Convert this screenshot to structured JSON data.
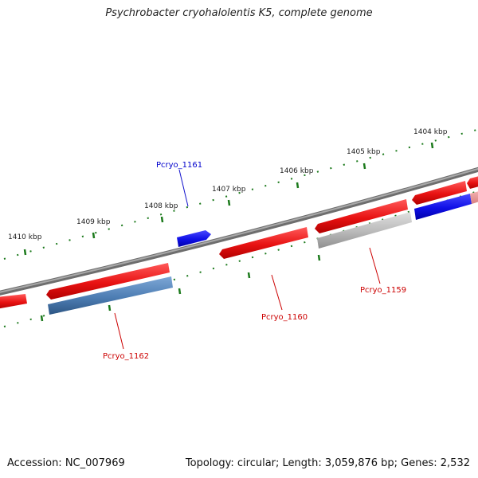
{
  "title": "Psychrobacter cryohalolentis K5, complete genome",
  "accession": "Accession: NC_007969",
  "topology": "Topology: circular; Length: 3,059,876 bp; Genes: 2,532",
  "colors": {
    "backbone": "#8a8a8a",
    "gene_red": "#ee1c1c",
    "gene_blue": "#1212e8",
    "gene_steel": "#4f7fb5",
    "gene_gray": "#b8b8b8",
    "tick_green": "#1c7a1c",
    "label_red": "#cc0000",
    "label_blue": "#0000cc"
  },
  "scale_labels": [
    "1410 kbp",
    "1409 kbp",
    "1408 kbp",
    "1407 kbp",
    "1406 kbp",
    "1405 kbp",
    "1404 kbp"
  ],
  "gene_labels": {
    "pcryo_1161": "Pcryo_1161",
    "pcryo_1162": "Pcryo_1162",
    "pcryo_1160": "Pcryo_1160",
    "pcryo_1159": "Pcryo_1159"
  }
}
